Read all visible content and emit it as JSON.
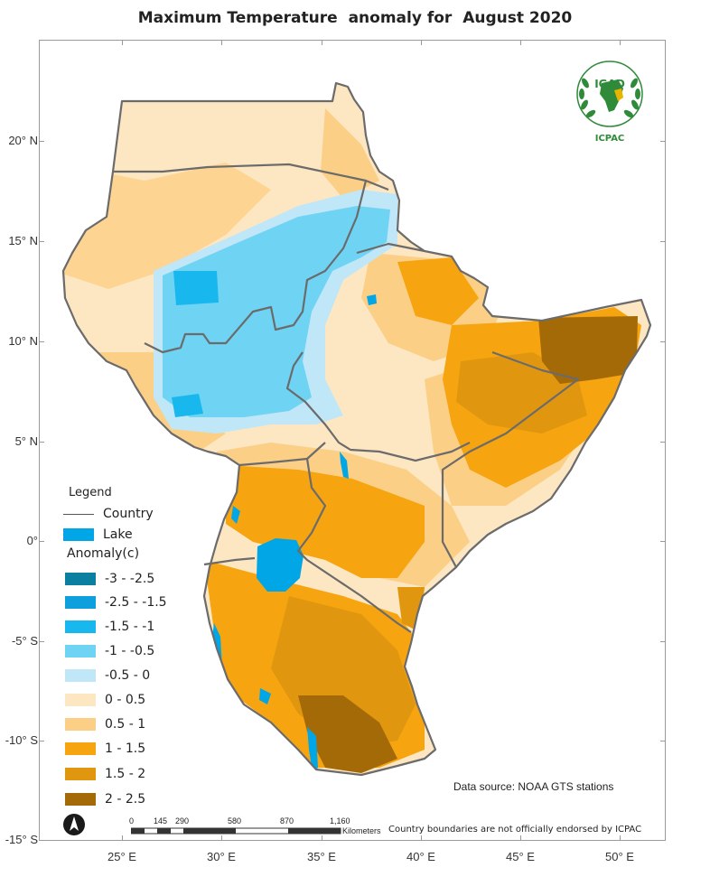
{
  "title": {
    "part1": "Maximum Temperature",
    "part2": "anomaly for",
    "part3": "August 2020"
  },
  "axes": {
    "lat_labels": [
      "20° N",
      "15° N",
      "10° N",
      "5° N",
      "0°",
      "-5° S",
      "-10° S",
      "-15° S"
    ],
    "lon_labels": [
      "25° E",
      "30° E",
      "35° E",
      "40° E",
      "45° E",
      "50° E"
    ]
  },
  "legend": {
    "title": "Legend",
    "country_label": "Country",
    "lake_label": "Lake",
    "anomaly_title": "Anomaly(c)",
    "classes": [
      {
        "label": "-3 - -2.5",
        "color": "#0a7fa0"
      },
      {
        "label": "-2.5 - -1.5",
        "color": "#0ea0dc"
      },
      {
        "label": "-1.5 - -1",
        "color": "#18b8ee"
      },
      {
        "label": "-1 - -0.5",
        "color": "#6fd3f3"
      },
      {
        "label": "-0.5 - 0",
        "color": "#bfe7f8"
      },
      {
        "label": "0 - 0.5",
        "color": "#fde6c2"
      },
      {
        "label": "0.5 - 1",
        "color": "#fccf86"
      },
      {
        "label": "1 - 1.5",
        "color": "#f6a40f"
      },
      {
        "label": "1.5 - 2",
        "color": "#e0970f"
      },
      {
        "label": "2 - 2.5",
        "color": "#a56a08"
      }
    ],
    "lake_color": "#00a6e6",
    "country_line_color": "#6b6b6b"
  },
  "logo": {
    "top_text": "IGAD",
    "bottom_text": "ICPAC"
  },
  "source_text": "Data source: NOAA   GTS stations",
  "scale_bar": {
    "ticks": [
      "0",
      "145",
      "290",
      "580",
      "870",
      "1,160"
    ],
    "unit": "Kilometers"
  },
  "disclaimer": "Country boundaries are not officially endorsed by ICPAC"
}
